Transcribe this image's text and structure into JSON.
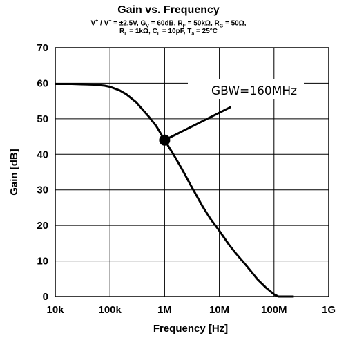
{
  "chart_data": {
    "type": "line",
    "title": "Gain vs. Frequency",
    "conditions": {
      "vsupply": {
        "v": "V",
        "plus": "+",
        "slash": " / V",
        "minus": "−",
        "value": " = ±2.5V, "
      },
      "gv": {
        "g": "G",
        "sub": "V",
        "value": " = 60dB, "
      },
      "rf": {
        "r": "R",
        "sub": "F",
        "value": " = 50kΩ, "
      },
      "rg": {
        "r": "R",
        "sub": "G",
        "value": " = 50Ω,"
      },
      "rl": {
        "r": "R",
        "sub": "L",
        "value": " = 1kΩ, "
      },
      "cl": {
        "c": "C",
        "sub": "L",
        "value": " = 10pF, "
      },
      "ta": {
        "t": "T",
        "sub": "a",
        "value": " = 25°C"
      }
    },
    "xlabel": "Frequency [Hz]",
    "ylabel": "Gain [dB]",
    "xscale": "log",
    "xlim": [
      10000,
      1000000000
    ],
    "ylim": [
      0,
      70
    ],
    "x_tick_labels": [
      "10k",
      "100k",
      "1M",
      "10M",
      "100M",
      "1G"
    ],
    "y_tick_labels": [
      "0",
      "10",
      "20",
      "30",
      "40",
      "50",
      "60",
      "70"
    ],
    "grid": true,
    "series": [
      {
        "x": [
          10000,
          20000,
          30000,
          50000,
          80000,
          100000,
          150000,
          200000,
          300000,
          500000,
          700000,
          1000000,
          1500000,
          2000000,
          3000000,
          5000000,
          7000000,
          10000000,
          15000000,
          20000000,
          30000000,
          50000000,
          70000000,
          100000000,
          120000000,
          150000000,
          200000000,
          230000000
        ],
        "y": [
          59.8,
          59.8,
          59.7,
          59.6,
          59.3,
          59.0,
          58.0,
          56.9,
          54.7,
          50.8,
          48.0,
          44.0,
          39.6,
          36.3,
          31.3,
          25.2,
          21.7,
          18.5,
          14.6,
          12.2,
          9.0,
          4.8,
          2.6,
          0.6,
          0.0,
          0.0,
          0.0,
          0.0
        ]
      }
    ],
    "marker": {
      "x": 1000000,
      "y": 44
    },
    "annotation": {
      "text": "GBW=160MHz"
    }
  }
}
